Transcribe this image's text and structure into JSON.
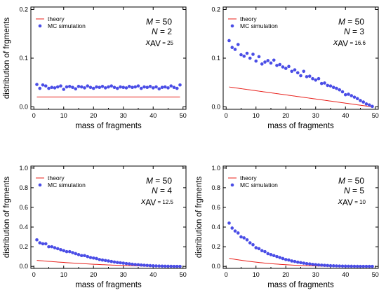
{
  "figure": {
    "colors": {
      "theory": "#e8201b",
      "mc": "#4a4de6",
      "axis": "#000000"
    }
  },
  "chart_data": [
    {
      "type": "line",
      "xlabel": "mass of fragments",
      "ylabel": "distribution of frgments",
      "xlim": [
        -1,
        51
      ],
      "ylim": [
        -0.005,
        0.205
      ],
      "xticks": [
        0,
        10,
        20,
        30,
        40,
        50
      ],
      "yticks": [
        0.0,
        0.1,
        0.2
      ],
      "ytick_labels": [
        "0.0",
        "0.1",
        "0.2"
      ],
      "legend": {
        "position": "top-left",
        "entries": [
          "theory",
          "MC simulation"
        ]
      },
      "params": {
        "M": "M = 50",
        "N": "N = 2",
        "xav_symbol": "x",
        "xav_sub": "AV",
        "xav_value": "= 25"
      },
      "series": [
        {
          "name": "theory",
          "kind": "line",
          "formula_N": 2
        },
        {
          "name": "MC simulation",
          "kind": "scatter",
          "x": [
            1,
            2,
            3,
            4,
            5,
            6,
            7,
            8,
            9,
            10,
            11,
            12,
            13,
            14,
            15,
            16,
            17,
            18,
            19,
            20,
            21,
            22,
            23,
            24,
            25,
            26,
            27,
            28,
            29,
            30,
            31,
            32,
            33,
            34,
            35,
            36,
            37,
            38,
            39,
            40,
            41,
            42,
            43,
            44,
            45,
            46,
            47,
            48,
            49
          ],
          "y": [
            0.046,
            0.038,
            0.045,
            0.043,
            0.038,
            0.04,
            0.039,
            0.041,
            0.043,
            0.036,
            0.041,
            0.042,
            0.04,
            0.037,
            0.042,
            0.041,
            0.039,
            0.043,
            0.04,
            0.038,
            0.041,
            0.04,
            0.042,
            0.039,
            0.041,
            0.043,
            0.04,
            0.038,
            0.041,
            0.04,
            0.039,
            0.042,
            0.04,
            0.041,
            0.043,
            0.038,
            0.041,
            0.04,
            0.042,
            0.039,
            0.041,
            0.037,
            0.04,
            0.041,
            0.039,
            0.043,
            0.04,
            0.038,
            0.045
          ]
        }
      ]
    },
    {
      "type": "line",
      "xlabel": "mass of fragments",
      "ylabel": "",
      "xlim": [
        -1,
        51
      ],
      "ylim": [
        -0.005,
        0.205
      ],
      "xticks": [
        0,
        10,
        20,
        30,
        40,
        50
      ],
      "yticks": [
        0.0,
        0.1,
        0.2
      ],
      "ytick_labels": [
        "0.0",
        "0.1",
        "0.2"
      ],
      "legend": {
        "position": "top-left",
        "entries": [
          "theory",
          "MC simulation"
        ]
      },
      "params": {
        "M": "M = 50",
        "N": "N = 3",
        "xav_symbol": "x",
        "xav_sub": "AV",
        "xav_value": "= 16.6"
      },
      "series": [
        {
          "name": "theory",
          "kind": "line",
          "formula_N": 3
        },
        {
          "name": "MC simulation",
          "kind": "scatter",
          "x": [
            1,
            2,
            3,
            4,
            5,
            6,
            7,
            8,
            9,
            10,
            11,
            12,
            13,
            14,
            15,
            16,
            17,
            18,
            19,
            20,
            21,
            22,
            23,
            24,
            25,
            26,
            27,
            28,
            29,
            30,
            31,
            32,
            33,
            34,
            35,
            36,
            37,
            38,
            39,
            40,
            41,
            42,
            43,
            44,
            45,
            46,
            47,
            48,
            49
          ],
          "y": [
            0.136,
            0.122,
            0.118,
            0.128,
            0.107,
            0.104,
            0.11,
            0.1,
            0.108,
            0.094,
            0.103,
            0.088,
            0.092,
            0.095,
            0.09,
            0.096,
            0.085,
            0.087,
            0.082,
            0.079,
            0.083,
            0.073,
            0.076,
            0.07,
            0.064,
            0.073,
            0.062,
            0.063,
            0.058,
            0.055,
            0.058,
            0.048,
            0.049,
            0.044,
            0.043,
            0.04,
            0.038,
            0.035,
            0.031,
            0.025,
            0.026,
            0.023,
            0.02,
            0.017,
            0.013,
            0.01,
            0.006,
            0.004,
            0.001
          ]
        }
      ]
    },
    {
      "type": "line",
      "xlabel": "mass of fragments",
      "ylabel": "distribution of frgments",
      "xlim": [
        -1,
        51
      ],
      "ylim": [
        -0.02,
        1.02
      ],
      "xticks": [
        0,
        10,
        20,
        30,
        40,
        50
      ],
      "yticks": [
        0.0,
        0.2,
        0.4,
        0.6,
        0.8,
        1.0
      ],
      "ytick_labels": [
        "0.0",
        "0.2",
        "0.4",
        "0.6",
        "0.8",
        "1.0"
      ],
      "legend": {
        "position": "top-left",
        "entries": [
          "theory",
          "MC simulation"
        ]
      },
      "params": {
        "M": "M = 50",
        "N": "N = 4",
        "xav_symbol": "x",
        "xav_sub": "AV",
        "xav_value": "= 12.5"
      },
      "series": [
        {
          "name": "theory",
          "kind": "line",
          "formula_N": 4
        },
        {
          "name": "MC simulation",
          "kind": "scatter",
          "x": [
            1,
            2,
            3,
            4,
            5,
            6,
            7,
            8,
            9,
            10,
            11,
            12,
            13,
            14,
            15,
            16,
            17,
            18,
            19,
            20,
            21,
            22,
            23,
            24,
            25,
            26,
            27,
            28,
            29,
            30,
            31,
            32,
            33,
            34,
            35,
            36,
            37,
            38,
            39,
            40,
            41,
            42,
            43,
            44,
            45,
            46,
            47,
            48,
            49
          ],
          "y": [
            0.27,
            0.24,
            0.23,
            0.23,
            0.2,
            0.2,
            0.19,
            0.18,
            0.17,
            0.16,
            0.15,
            0.15,
            0.14,
            0.13,
            0.12,
            0.11,
            0.11,
            0.1,
            0.09,
            0.085,
            0.08,
            0.07,
            0.065,
            0.06,
            0.055,
            0.05,
            0.045,
            0.04,
            0.037,
            0.033,
            0.029,
            0.026,
            0.022,
            0.019,
            0.017,
            0.014,
            0.012,
            0.01,
            0.008,
            0.006,
            0.005,
            0.004,
            0.003,
            0.002,
            0.0015,
            0.001,
            0.0005,
            0.0003,
            0.0001
          ]
        }
      ]
    },
    {
      "type": "line",
      "xlabel": "mass of fragments",
      "ylabel": "distribution of frgments",
      "xlim": [
        -1,
        51
      ],
      "ylim": [
        -0.02,
        1.02
      ],
      "xticks": [
        0,
        10,
        20,
        30,
        40,
        50
      ],
      "yticks": [
        0.0,
        0.2,
        0.4,
        0.6,
        0.8,
        1.0
      ],
      "ytick_labels": [
        "0.0",
        "0.2",
        "0.4",
        "0.6",
        "0.8",
        "1.0"
      ],
      "legend": {
        "position": "top-left",
        "entries": [
          "theory",
          "MC simulation"
        ]
      },
      "params": {
        "M": "M = 50",
        "N": "N = 5",
        "xav_symbol": "x",
        "xav_sub": "AV",
        "xav_value": "= 10"
      },
      "series": [
        {
          "name": "theory",
          "kind": "line",
          "formula_N": 5
        },
        {
          "name": "MC simulation",
          "kind": "scatter",
          "x": [
            1,
            2,
            3,
            4,
            5,
            6,
            7,
            8,
            9,
            10,
            11,
            12,
            13,
            14,
            15,
            16,
            17,
            18,
            19,
            20,
            21,
            22,
            23,
            24,
            25,
            26,
            27,
            28,
            29,
            30,
            31,
            32,
            33,
            34,
            35,
            36,
            37,
            38,
            39,
            40,
            41,
            42,
            43,
            44,
            45,
            46,
            47,
            48,
            49
          ],
          "y": [
            0.44,
            0.39,
            0.36,
            0.34,
            0.3,
            0.29,
            0.27,
            0.24,
            0.22,
            0.19,
            0.18,
            0.16,
            0.15,
            0.13,
            0.12,
            0.11,
            0.1,
            0.09,
            0.08,
            0.07,
            0.065,
            0.055,
            0.05,
            0.043,
            0.038,
            0.033,
            0.028,
            0.025,
            0.021,
            0.018,
            0.015,
            0.013,
            0.011,
            0.009,
            0.007,
            0.006,
            0.005,
            0.004,
            0.003,
            0.0025,
            0.002,
            0.0015,
            0.001,
            0.0008,
            0.0005,
            0.0003,
            0.0002,
            0.0001,
            0.0001
          ]
        }
      ]
    }
  ]
}
